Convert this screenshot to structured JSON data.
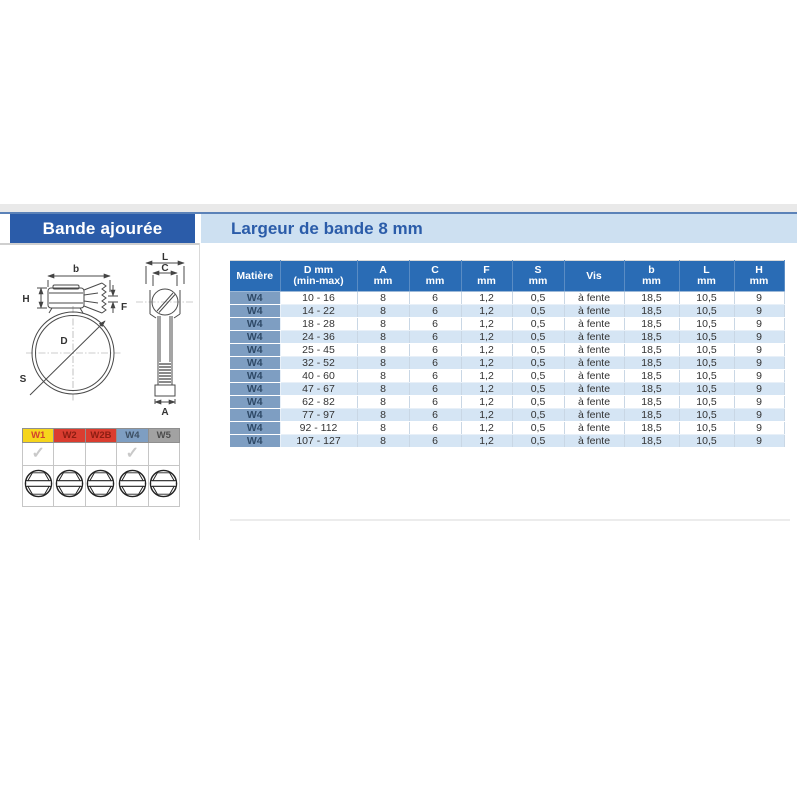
{
  "header": {
    "title": "Bande ajourée",
    "subtitle": "Largeur de bande 8 mm"
  },
  "colors": {
    "primary_blue": "#2b5ca9",
    "subtitle_bg": "#cde0f1",
    "table_header_blue": "#2a6cb5",
    "matiere_cell_bg": "#7e9ec2",
    "row_alt_bg": "#d5e5f4",
    "w1_yellow": "#f6d51c",
    "w2_red": "#da3d30",
    "w4_steel_blue": "#7e9ec2",
    "w5_gray": "#a2a2a2"
  },
  "diagram": {
    "labels": {
      "b": "b",
      "H": "H",
      "F": "F",
      "D": "D",
      "S": "S",
      "L": "L",
      "C": "C",
      "A": "A"
    }
  },
  "material_legend": {
    "check_glyph": "✓",
    "screw_icon": "slotted-hex-screw-icon",
    "columns": [
      {
        "label": "W1",
        "bg": "#f6d51c",
        "fg": "#d2422e",
        "checked": true
      },
      {
        "label": "W2",
        "bg": "#da3d30",
        "fg": "#8c1d12",
        "checked": false
      },
      {
        "label": "W2B",
        "bg": "#da3d30",
        "fg": "#8c1d12",
        "checked": false
      },
      {
        "label": "W4",
        "bg": "#7e9ec2",
        "fg": "#3c4f63",
        "checked": true
      },
      {
        "label": "W5",
        "bg": "#a2a2a2",
        "fg": "#4c4c4c",
        "checked": false
      }
    ]
  },
  "spec_table": {
    "columns": [
      {
        "line1": "Matière",
        "line2": ""
      },
      {
        "line1": "D mm",
        "line2": "(min-max)"
      },
      {
        "line1": "A",
        "line2": "mm"
      },
      {
        "line1": "C",
        "line2": "mm"
      },
      {
        "line1": "F",
        "line2": "mm"
      },
      {
        "line1": "S",
        "line2": "mm"
      },
      {
        "line1": "Vis",
        "line2": ""
      },
      {
        "line1": "b",
        "line2": "mm"
      },
      {
        "line1": "L",
        "line2": "mm"
      },
      {
        "line1": "H",
        "line2": "mm"
      }
    ],
    "rows": [
      [
        "W4",
        "10 - 16",
        "8",
        "6",
        "1,2",
        "0,5",
        "à fente",
        "18,5",
        "10,5",
        "9"
      ],
      [
        "W4",
        "14 - 22",
        "8",
        "6",
        "1,2",
        "0,5",
        "à fente",
        "18,5",
        "10,5",
        "9"
      ],
      [
        "W4",
        "18 - 28",
        "8",
        "6",
        "1,2",
        "0,5",
        "à fente",
        "18,5",
        "10,5",
        "9"
      ],
      [
        "W4",
        "24 - 36",
        "8",
        "6",
        "1,2",
        "0,5",
        "à fente",
        "18,5",
        "10,5",
        "9"
      ],
      [
        "W4",
        "25 - 45",
        "8",
        "6",
        "1,2",
        "0,5",
        "à fente",
        "18,5",
        "10,5",
        "9"
      ],
      [
        "W4",
        "32 - 52",
        "8",
        "6",
        "1,2",
        "0,5",
        "à fente",
        "18,5",
        "10,5",
        "9"
      ],
      [
        "W4",
        "40 - 60",
        "8",
        "6",
        "1,2",
        "0,5",
        "à fente",
        "18,5",
        "10,5",
        "9"
      ],
      [
        "W4",
        "47 - 67",
        "8",
        "6",
        "1,2",
        "0,5",
        "à fente",
        "18,5",
        "10,5",
        "9"
      ],
      [
        "W4",
        "62 - 82",
        "8",
        "6",
        "1,2",
        "0,5",
        "à fente",
        "18,5",
        "10,5",
        "9"
      ],
      [
        "W4",
        "77 - 97",
        "8",
        "6",
        "1,2",
        "0,5",
        "à fente",
        "18,5",
        "10,5",
        "9"
      ],
      [
        "W4",
        "92 - 112",
        "8",
        "6",
        "1,2",
        "0,5",
        "à fente",
        "18,5",
        "10,5",
        "9"
      ],
      [
        "W4",
        "107 - 127",
        "8",
        "6",
        "1,2",
        "0,5",
        "à fente",
        "18,5",
        "10,5",
        "9"
      ]
    ]
  }
}
